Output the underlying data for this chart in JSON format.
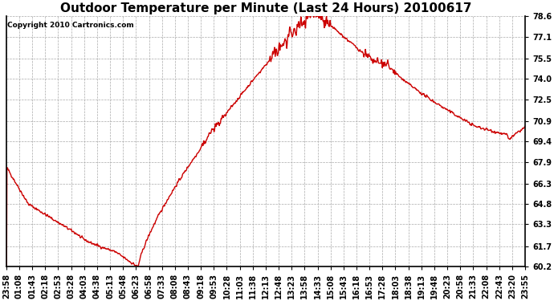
{
  "title": "Outdoor Temperature per Minute (Last 24 Hours) 20100617",
  "copyright": "Copyright 2010 Cartronics.com",
  "line_color": "#cc0000",
  "background_color": "#ffffff",
  "grid_color": "#aaaaaa",
  "ylim": [
    60.2,
    78.6
  ],
  "yticks": [
    60.2,
    61.7,
    63.3,
    64.8,
    66.3,
    67.9,
    69.4,
    70.9,
    72.5,
    74.0,
    75.5,
    77.1,
    78.6
  ],
  "xtick_labels": [
    "23:58",
    "01:08",
    "01:43",
    "02:18",
    "02:53",
    "03:28",
    "04:03",
    "04:38",
    "05:13",
    "05:48",
    "06:23",
    "06:58",
    "07:33",
    "08:08",
    "08:43",
    "09:18",
    "09:53",
    "10:28",
    "11:03",
    "11:38",
    "12:13",
    "12:48",
    "13:23",
    "13:58",
    "14:33",
    "15:08",
    "15:43",
    "16:18",
    "16:53",
    "17:28",
    "18:03",
    "18:38",
    "19:13",
    "19:48",
    "20:23",
    "20:58",
    "21:33",
    "22:08",
    "22:43",
    "23:20",
    "23:55"
  ],
  "title_fontsize": 11,
  "tick_fontsize": 7,
  "copyright_fontsize": 6.5,
  "line_width": 1.0,
  "fig_width": 6.9,
  "fig_height": 3.75,
  "dpi": 100
}
